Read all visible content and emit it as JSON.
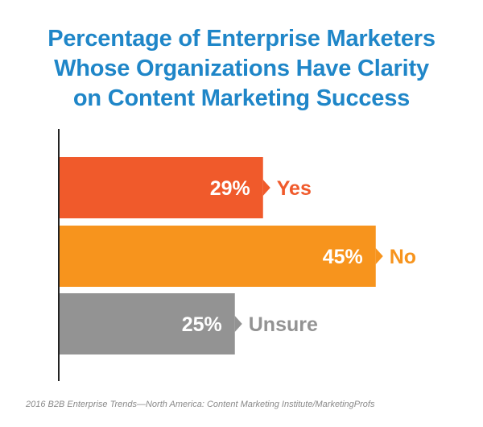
{
  "chart_data": {
    "type": "bar",
    "orientation": "horizontal",
    "title_lines": [
      "Percentage of Enterprise Marketers",
      "Whose Organizations Have Clarity",
      "on Content Marketing Success"
    ],
    "categories": [
      "Yes",
      "No",
      "Unsure"
    ],
    "values": [
      29,
      45,
      25
    ],
    "value_labels": [
      "29%",
      "45%",
      "25%"
    ],
    "colors": [
      "#f05a2b",
      "#f7941d",
      "#939393"
    ],
    "xlim": [
      0,
      100
    ],
    "grid": false,
    "legend": "none"
  },
  "source": "2016 B2B Enterprise Trends—North America: Content Marketing Institute/MarketingProfs"
}
